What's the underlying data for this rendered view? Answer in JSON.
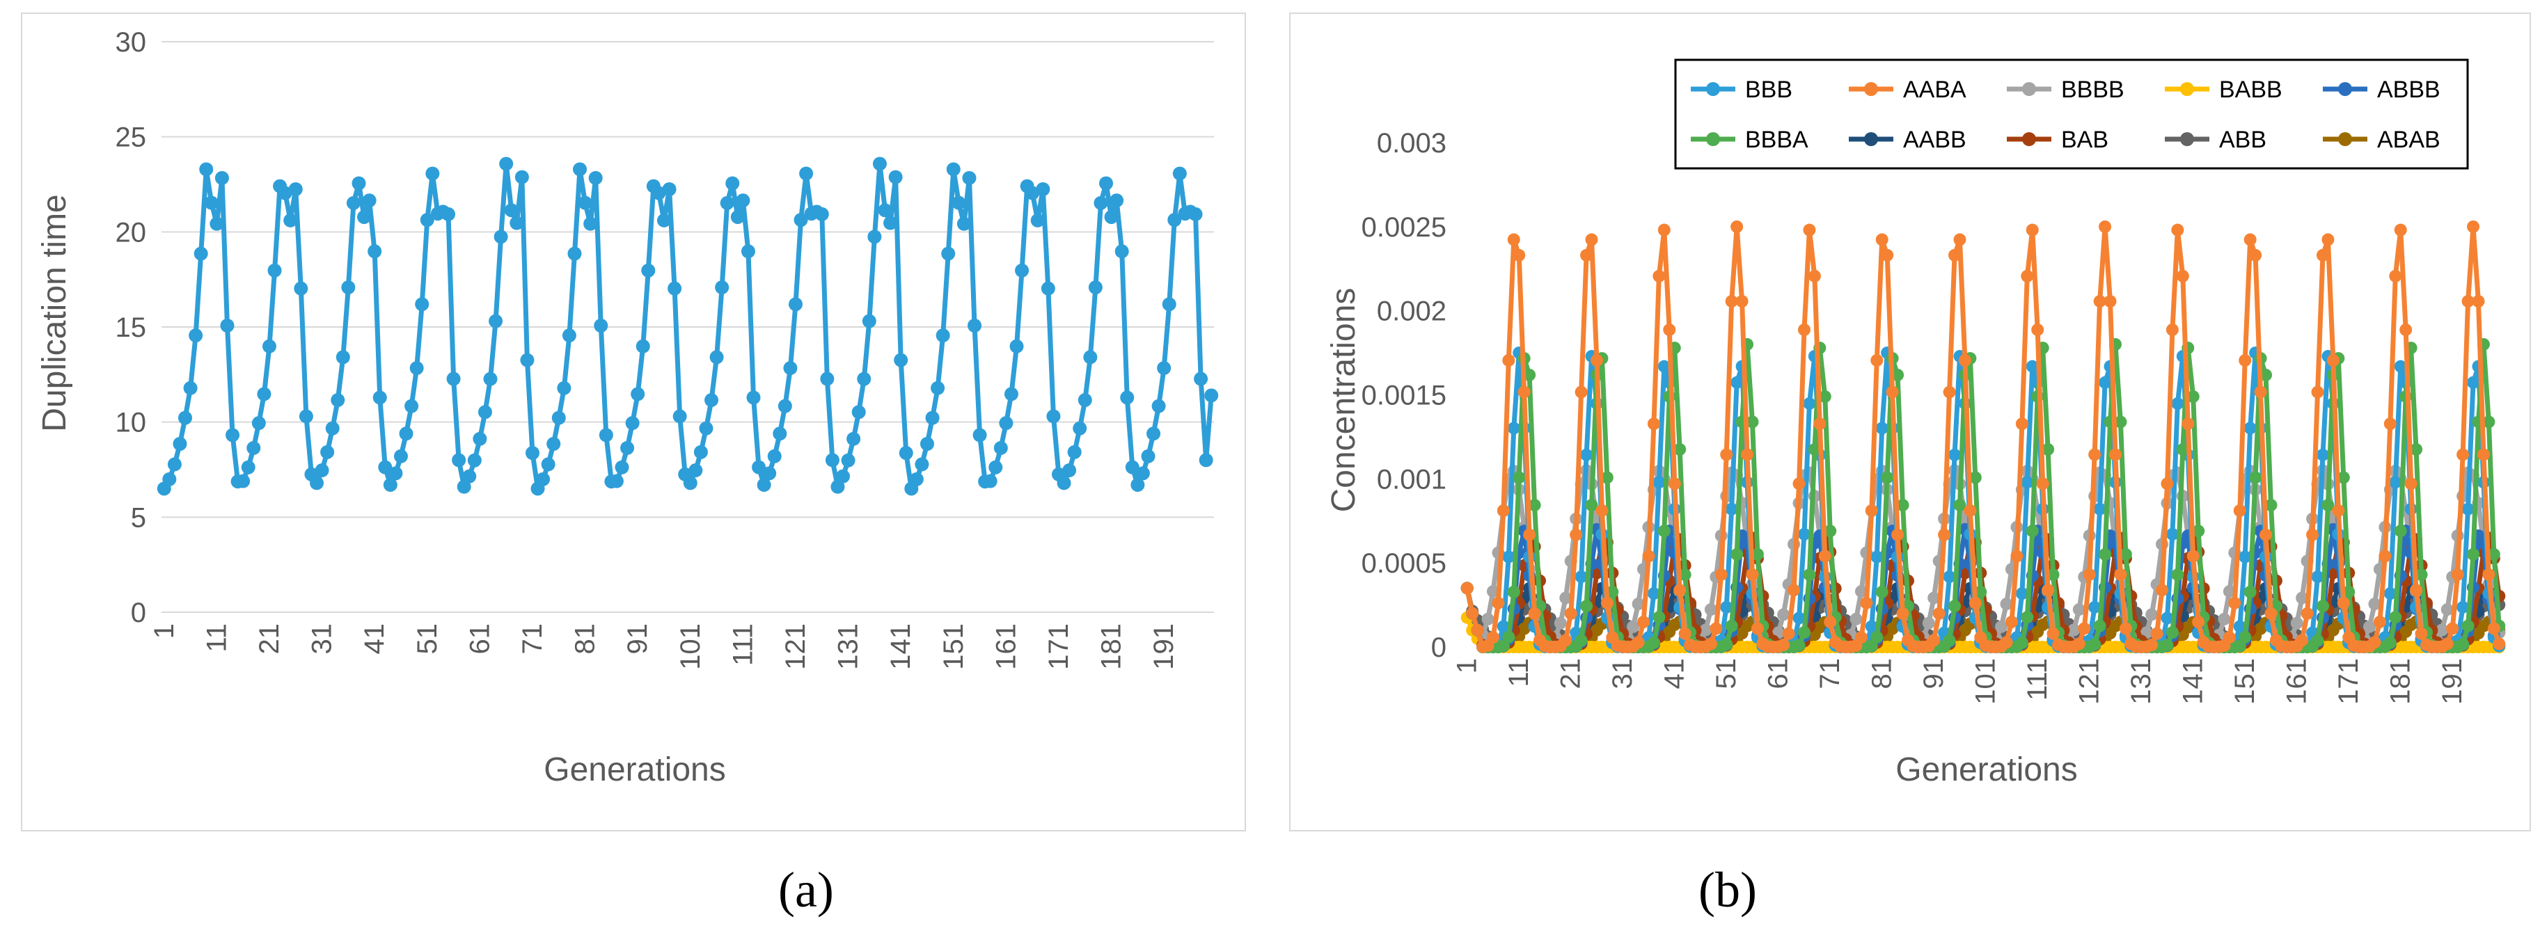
{
  "captions": {
    "a": "(a)",
    "b": "(b)"
  },
  "chart_data": [
    {
      "type": "line",
      "id": "a",
      "title": "",
      "xlabel": "Generations",
      "ylabel": "Duplication time",
      "ylim": [
        0,
        30
      ],
      "yticks": [
        0,
        5,
        10,
        15,
        20,
        25,
        30
      ],
      "xticks": [
        "1",
        "11",
        "21",
        "31",
        "41",
        "51",
        "61",
        "71",
        "81",
        "91",
        "101",
        "111",
        "121",
        "131",
        "141",
        "151",
        "161",
        "171",
        "181",
        "191"
      ],
      "n": 200,
      "gridlines": true,
      "series": [
        {
          "name": "Duplication time",
          "color": "#2E9ED8",
          "cycle_period": 14.2,
          "cycle_profile": [
            6.5,
            7.0,
            7.8,
            8.9,
            10.3,
            11.9,
            14.8,
            19.3,
            23.8,
            21.2,
            20.3,
            23.3,
            13.4,
            8.4
          ],
          "last_value": 11.4
        }
      ]
    },
    {
      "type": "line",
      "id": "b",
      "title": "",
      "xlabel": "Generations",
      "ylabel": "Concentrations",
      "ylim": [
        0,
        0.003
      ],
      "yticks": [
        "0",
        "0.0005",
        "0.001",
        "0.0015",
        "0.002",
        "0.0025",
        "0.003"
      ],
      "ytick_values": [
        0,
        0.0005,
        0.001,
        0.0015,
        0.002,
        0.0025,
        0.003
      ],
      "xticks": [
        "1",
        "11",
        "21",
        "31",
        "41",
        "51",
        "61",
        "71",
        "81",
        "91",
        "101",
        "111",
        "121",
        "131",
        "141",
        "151",
        "161",
        "171",
        "181",
        "191"
      ],
      "n": 200,
      "gridlines": false,
      "legend": "top-right",
      "series": [
        {
          "name": "BBB",
          "color": "#2E9ED8",
          "peak": 0.00175,
          "offset": 0.0,
          "width": 1.3
        },
        {
          "name": "AABA",
          "color": "#F58232",
          "peak": 0.0025,
          "offset": -0.6,
          "width": 1.6
        },
        {
          "name": "BBBB",
          "color": "#A5A5A5",
          "peak": 0.00105,
          "offset": -1.2,
          "width": 2.5
        },
        {
          "name": "BABB",
          "color": "#FFC000",
          "peak": 0.0,
          "offset": 0.0,
          "width": 1.0
        },
        {
          "name": "ABBB",
          "color": "#2A6FBF",
          "peak": 0.0007,
          "offset": 0.8,
          "width": 1.2
        },
        {
          "name": "BBBA",
          "color": "#4EAD4E",
          "peak": 0.0018,
          "offset": 1.4,
          "width": 1.3
        },
        {
          "name": "AABB",
          "color": "#1F4E79",
          "peak": 0.00035,
          "offset": 1.9,
          "width": 1.5
        },
        {
          "name": "BAB",
          "color": "#A5400E",
          "peak": 0.00065,
          "offset": 2.3,
          "width": 1.7
        },
        {
          "name": "ABB",
          "color": "#636363",
          "peak": 0.00028,
          "offset": 3.0,
          "width": 3.0
        },
        {
          "name": "ABAB",
          "color": "#9C6B00",
          "peak": 0.00015,
          "offset": 2.6,
          "width": 2.0
        }
      ],
      "cycle_period": 14.2
    }
  ]
}
